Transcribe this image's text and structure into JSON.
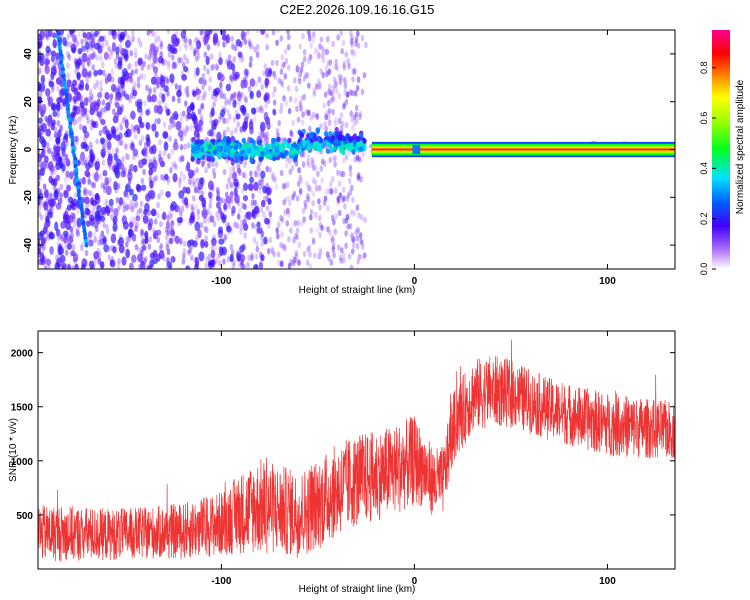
{
  "chart_data": [
    {
      "type": "heatmap",
      "title": "C2E2.2026.109.16.16.G15",
      "xlabel": "Height of straight line (km)",
      "ylabel": "Frequency (Hz)",
      "xlim": [
        -195,
        135
      ],
      "ylim": [
        -50,
        50
      ],
      "xticks": [
        -100,
        0,
        100
      ],
      "xtick_labels": [
        "-100",
        "0",
        "100"
      ],
      "yticks": [
        -40,
        -20,
        0,
        20,
        40
      ],
      "ytick_labels": [
        "-40",
        "-20",
        "0",
        "20",
        "40"
      ],
      "colorbar": {
        "label": "Normalized spectral amplitude",
        "range": [
          0,
          0.95
        ],
        "ticks": [
          0,
          0.2,
          0.4,
          0.6,
          0.8
        ],
        "tick_labels": [
          "0.0",
          "0.2",
          "0.4",
          "0.6",
          "0.8"
        ],
        "colormap": [
          "#ffffff",
          "#7a00ff",
          "#0000ff",
          "#00ffff",
          "#00ff00",
          "#ffff00",
          "#ff8800",
          "#ff0000",
          "#ff00aa"
        ]
      },
      "features": [
        {
          "name": "direct signal line",
          "x_range": [
            -20,
            135
          ],
          "frequency": 0,
          "amplitude": 0.85
        },
        {
          "name": "scattered cluster",
          "x_range": [
            -115,
            -25
          ],
          "frequency_range": [
            -8,
            12
          ],
          "amplitude": 0.3
        },
        {
          "name": "diagonal trace",
          "x_start": -185,
          "freq_start": 50,
          "x_end": -170,
          "freq_end": -40,
          "amplitude": 0.25
        },
        {
          "name": "noise field",
          "x_range": [
            -195,
            -30
          ],
          "frequency_range": [
            -50,
            50
          ],
          "amplitude": 0.1
        }
      ]
    },
    {
      "type": "line",
      "title": "",
      "xlabel": "Height of straight line (km)",
      "ylabel": "SNR (10 * v/v)",
      "xlim": [
        -195,
        135
      ],
      "ylim": [
        0,
        2200
      ],
      "xticks": [
        -100,
        0,
        100
      ],
      "xtick_labels": [
        "-100",
        "0",
        "100"
      ],
      "yticks": [
        500,
        1000,
        1500,
        2000
      ],
      "ytick_labels": [
        "500",
        "1000",
        "1500",
        "2000"
      ],
      "color": "#ee3333",
      "series": [
        {
          "name": "SNR",
          "x": [
            -195,
            -180,
            -160,
            -140,
            -120,
            -100,
            -90,
            -80,
            -70,
            -60,
            -50,
            -40,
            -30,
            -20,
            -10,
            0,
            5,
            10,
            15,
            20,
            30,
            40,
            50,
            60,
            70,
            80,
            90,
            100,
            110,
            120,
            135
          ],
          "mean": [
            330,
            330,
            320,
            330,
            350,
            420,
            520,
            580,
            550,
            500,
            600,
            730,
            820,
            860,
            920,
            1000,
            920,
            800,
            820,
            1300,
            1600,
            1650,
            1620,
            1550,
            1480,
            1430,
            1380,
            1340,
            1320,
            1300,
            1280
          ],
          "amp": [
            260,
            260,
            240,
            240,
            260,
            300,
            380,
            450,
            420,
            400,
            420,
            430,
            430,
            420,
            420,
            420,
            350,
            320,
            320,
            330,
            340,
            330,
            320,
            300,
            290,
            290,
            290,
            290,
            290,
            280,
            270
          ]
        }
      ]
    }
  ]
}
